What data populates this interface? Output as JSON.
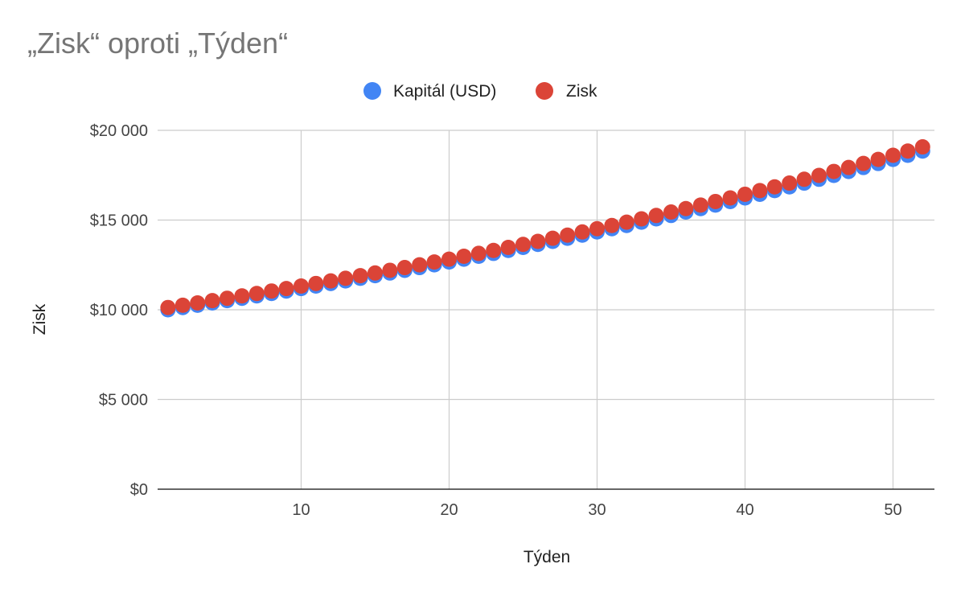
{
  "chart_data": {
    "type": "scatter",
    "title": "„Zisk“ oproti „Týden“",
    "xlabel": "Týden",
    "ylabel": "Zisk",
    "xlim": [
      0.3,
      52.8
    ],
    "ylim": [
      0,
      20000
    ],
    "xticks": [
      10,
      20,
      30,
      40,
      50
    ],
    "xtick_labels": [
      "10",
      "20",
      "30",
      "40",
      "50"
    ],
    "yticks": [
      0,
      5000,
      10000,
      15000,
      20000
    ],
    "ytick_labels": [
      "$0",
      "$5 000",
      "$10 000",
      "$15 000",
      "$20 000"
    ],
    "grid": true,
    "legend_position": "top",
    "x": [
      1,
      2,
      3,
      4,
      5,
      6,
      7,
      8,
      9,
      10,
      11,
      12,
      13,
      14,
      15,
      16,
      17,
      18,
      19,
      20,
      21,
      22,
      23,
      24,
      25,
      26,
      27,
      28,
      29,
      30,
      31,
      32,
      33,
      34,
      35,
      36,
      37,
      38,
      39,
      40,
      41,
      42,
      43,
      44,
      45,
      46,
      47,
      48,
      49,
      50,
      51,
      52
    ],
    "series": [
      {
        "name": "Kapitál (USD)",
        "color": "#4285f4",
        "values": [
          10000,
          10125,
          10252,
          10380,
          10510,
          10641,
          10774,
          10909,
          11045,
          11183,
          11323,
          11465,
          11608,
          11753,
          11900,
          12049,
          12199,
          12352,
          12506,
          12663,
          12821,
          12981,
          13143,
          13308,
          13474,
          13642,
          13813,
          13986,
          14160,
          14337,
          14517,
          14698,
          14882,
          15068,
          15256,
          15447,
          15640,
          15836,
          16034,
          16234,
          16437,
          16642,
          16850,
          17061,
          17274,
          17490,
          17709,
          17930,
          18154,
          18381,
          18611,
          18844
        ]
      },
      {
        "name": "Zisk",
        "color": "#db4437",
        "values": [
          10125,
          10252,
          10380,
          10510,
          10641,
          10774,
          10909,
          11045,
          11183,
          11323,
          11465,
          11608,
          11753,
          11900,
          12049,
          12199,
          12352,
          12506,
          12663,
          12821,
          12981,
          13143,
          13308,
          13474,
          13642,
          13813,
          13986,
          14160,
          14337,
          14517,
          14698,
          14882,
          15068,
          15256,
          15447,
          15640,
          15836,
          16034,
          16234,
          16437,
          16642,
          16850,
          17061,
          17274,
          17490,
          17709,
          17930,
          18154,
          18381,
          18611,
          18844,
          19079
        ]
      }
    ]
  }
}
